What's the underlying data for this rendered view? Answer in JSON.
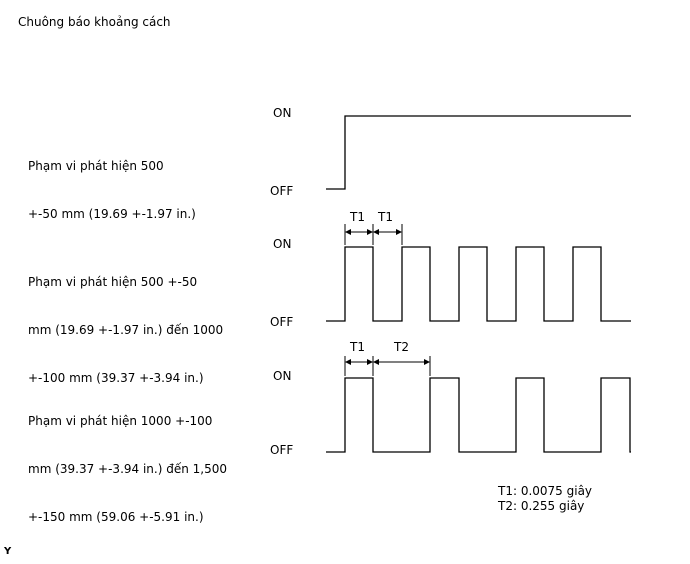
{
  "title": "Chuông báo khoảng cách",
  "level_on": "ON",
  "level_off": "OFF",
  "timing_labels": {
    "t1": "T1",
    "t2": "T2"
  },
  "rows": [
    {
      "description": [
        "Phạm vi phát hiện 500",
        "+-50 mm (19.69 +-1.97 in.)"
      ],
      "signal": "continuous"
    },
    {
      "description": [
        "Phạm vi phát hiện 500 +-50",
        "mm (19.69 +-1.97 in.) đến 1000",
        "+-100 mm (39.37 +-3.94 in.)"
      ],
      "signal": "pulse",
      "on_period": "T1",
      "off_period": "T1"
    },
    {
      "description": [
        "Phạm vi phát hiện 1000 +-100",
        "mm (39.37 +-3.94 in.) đến 1,500",
        "+-150 mm (59.06 +-5.91 in.)"
      ],
      "signal": "pulse",
      "on_period": "T1",
      "off_period": "T2"
    }
  ],
  "notes": [
    "T1: 0.0075 giây",
    "T2: 0.255 giây"
  ],
  "corner_label": "Y"
}
